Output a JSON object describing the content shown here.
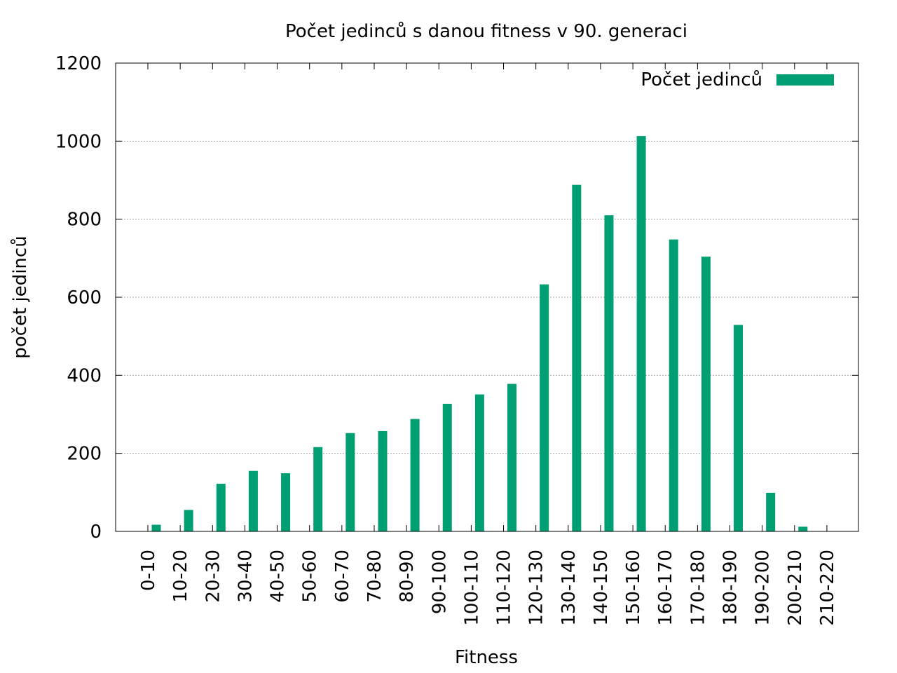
{
  "chart_data": {
    "type": "bar",
    "title": "Počet jedinců s danou fitness v 90. generaci",
    "xlabel": "Fitness",
    "ylabel": "počet jedinců",
    "ylim": [
      0,
      1200
    ],
    "yticks": [
      0,
      200,
      400,
      600,
      800,
      1000,
      1200
    ],
    "grid": true,
    "legend_position": "top-right",
    "bar_color": "#009e73",
    "categories": [
      "0-10",
      "10-20",
      "20-30",
      "30-40",
      "40-50",
      "50-60",
      "60-70",
      "70-80",
      "80-90",
      "90-100",
      "100-110",
      "110-120",
      "120-130",
      "130-140",
      "140-150",
      "150-160",
      "160-170",
      "170-180",
      "180-190",
      "190-200",
      "200-210",
      "210-220"
    ],
    "series": [
      {
        "name": "Počet jedinců",
        "values": [
          17,
          55,
          122,
          155,
          149,
          216,
          252,
          257,
          288,
          327,
          351,
          378,
          633,
          888,
          810,
          1013,
          748,
          704,
          529,
          99,
          12,
          0
        ]
      }
    ]
  }
}
